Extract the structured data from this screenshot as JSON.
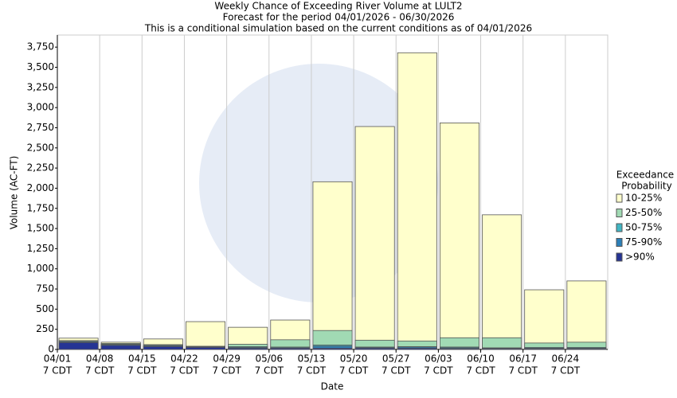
{
  "chart_data": {
    "type": "bar",
    "title": "Weekly Chance of Exceeding River Volume at LULT2",
    "subtitle": "Forecast for the period 04/01/2026 - 06/30/2026",
    "note": "This is a conditional simulation based on the current conditions as of 04/01/2026",
    "x_label": "Date",
    "y_label": "Volume (AC-FT)",
    "legend_title": [
      "Exceedance",
      "Probability"
    ],
    "legend_position": "right",
    "categories": [
      [
        "04/01",
        "7 CDT"
      ],
      [
        "04/08",
        "7 CDT"
      ],
      [
        "04/15",
        "7 CDT"
      ],
      [
        "04/22",
        "7 CDT"
      ],
      [
        "04/29",
        "7 CDT"
      ],
      [
        "05/06",
        "7 CDT"
      ],
      [
        "05/13",
        "7 CDT"
      ],
      [
        "05/20",
        "7 CDT"
      ],
      [
        "05/27",
        "7 CDT"
      ],
      [
        "06/03",
        "7 CDT"
      ],
      [
        "06/10",
        "7 CDT"
      ],
      [
        "06/17",
        "7 CDT"
      ],
      [
        "06/24",
        "7 CDT"
      ]
    ],
    "series": [
      {
        "name": "10-25%",
        "color": "#ffffcc",
        "values": [
          140,
          90,
          130,
          345,
          275,
          365,
          2080,
          2765,
          3680,
          2810,
          1670,
          740,
          850
        ]
      },
      {
        "name": "25-50%",
        "color": "#a1dab4",
        "values": [
          110,
          75,
          60,
          40,
          65,
          120,
          235,
          115,
          105,
          145,
          145,
          80,
          90
        ]
      },
      {
        "name": "50-75%",
        "color": "#41b6c4",
        "values": [
          100,
          65,
          50,
          35,
          35,
          30,
          55,
          30,
          35,
          30,
          20,
          25,
          25
        ]
      },
      {
        "name": "75-90%",
        "color": "#2c7fb8",
        "values": [
          95,
          60,
          45,
          30,
          25,
          20,
          40,
          25,
          30,
          20,
          15,
          15,
          15
        ]
      },
      {
        "name": ">90%",
        "color": "#253494",
        "values": [
          85,
          50,
          35,
          25,
          15,
          15,
          15,
          15,
          15,
          10,
          10,
          10,
          10
        ]
      }
    ],
    "ylim": [
      0,
      3900
    ],
    "yticks": [
      0,
      250,
      500,
      750,
      {
        "value": 1000,
        "label": "1,000"
      },
      {
        "value": 1250,
        "label": "1,250"
      },
      {
        "value": 1500,
        "label": "1,500"
      },
      {
        "value": 1750,
        "label": "1,750"
      },
      {
        "value": 2000,
        "label": "2,000"
      },
      {
        "value": 2250,
        "label": "2,250"
      },
      {
        "value": 2500,
        "label": "2,500"
      },
      {
        "value": 2750,
        "label": "2,750"
      },
      {
        "value": 3000,
        "label": "3,000"
      },
      {
        "value": 3250,
        "label": "3,250"
      },
      {
        "value": 3500,
        "label": "3,500"
      },
      {
        "value": 3750,
        "label": "3,750"
      }
    ]
  }
}
